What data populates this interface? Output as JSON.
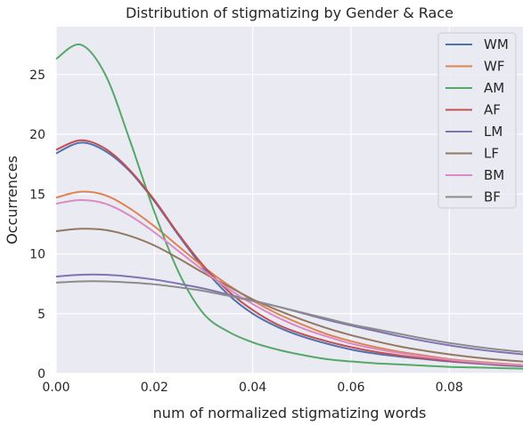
{
  "chart_data": {
    "type": "line",
    "title": "Distribution of stigmatizing by Gender & Race",
    "xlabel": "num of normalized stigmatizing words",
    "ylabel": "Occurrences",
    "xlim": [
      0.0,
      0.095
    ],
    "ylim": [
      0,
      29
    ],
    "xticks": [
      0.0,
      0.02,
      0.04,
      0.06,
      0.08
    ],
    "xtick_labels": [
      "0.00",
      "0.02",
      "0.04",
      "0.06",
      "0.08"
    ],
    "yticks": [
      0,
      5,
      10,
      15,
      20,
      25
    ],
    "ytick_labels": [
      "0",
      "5",
      "10",
      "15",
      "20",
      "25"
    ],
    "grid": true,
    "legend_position": "top-right",
    "x": [
      0.0,
      0.005,
      0.01,
      0.015,
      0.02,
      0.025,
      0.03,
      0.035,
      0.04,
      0.045,
      0.05,
      0.055,
      0.06,
      0.065,
      0.07,
      0.075,
      0.08,
      0.085,
      0.09,
      0.095
    ],
    "series": [
      {
        "name": "WM",
        "color": "#4c72b0",
        "values": [
          18.4,
          19.3,
          18.6,
          16.9,
          14.4,
          11.5,
          8.8,
          6.6,
          5.0,
          3.9,
          3.1,
          2.5,
          2.0,
          1.65,
          1.4,
          1.2,
          1.0,
          0.85,
          0.7,
          0.6
        ]
      },
      {
        "name": "WF",
        "color": "#dd8452",
        "values": [
          14.7,
          15.2,
          14.9,
          13.8,
          12.3,
          10.6,
          8.9,
          7.4,
          6.1,
          5.0,
          4.1,
          3.3,
          2.7,
          2.2,
          1.8,
          1.5,
          1.2,
          1.0,
          0.85,
          0.7
        ]
      },
      {
        "name": "AM",
        "color": "#55a868",
        "values": [
          26.3,
          27.5,
          25.0,
          19.5,
          13.5,
          8.4,
          5.0,
          3.5,
          2.6,
          2.0,
          1.55,
          1.2,
          1.0,
          0.85,
          0.75,
          0.65,
          0.55,
          0.5,
          0.45,
          0.4
        ]
      },
      {
        "name": "AF",
        "color": "#c44e52",
        "values": [
          18.7,
          19.5,
          18.8,
          17.0,
          14.5,
          11.6,
          9.0,
          6.9,
          5.3,
          4.1,
          3.3,
          2.7,
          2.2,
          1.8,
          1.5,
          1.25,
          1.05,
          0.9,
          0.75,
          0.65
        ]
      },
      {
        "name": "LM",
        "color": "#8172b3",
        "values": [
          8.1,
          8.25,
          8.25,
          8.1,
          7.85,
          7.5,
          7.1,
          6.6,
          6.1,
          5.6,
          5.05,
          4.5,
          4.0,
          3.55,
          3.1,
          2.7,
          2.35,
          2.05,
          1.8,
          1.6
        ]
      },
      {
        "name": "LF",
        "color": "#937860",
        "values": [
          11.9,
          12.1,
          12.0,
          11.5,
          10.7,
          9.6,
          8.4,
          7.3,
          6.2,
          5.3,
          4.5,
          3.8,
          3.2,
          2.7,
          2.25,
          1.9,
          1.6,
          1.35,
          1.15,
          1.0
        ]
      },
      {
        "name": "BM",
        "color": "#da8bc3",
        "values": [
          14.2,
          14.5,
          14.2,
          13.2,
          11.8,
          10.2,
          8.6,
          7.1,
          5.8,
          4.7,
          3.8,
          3.1,
          2.5,
          2.05,
          1.7,
          1.4,
          1.15,
          0.95,
          0.8,
          0.7
        ]
      },
      {
        "name": "BF",
        "color": "#8c8c8c",
        "values": [
          7.6,
          7.7,
          7.7,
          7.6,
          7.45,
          7.2,
          6.9,
          6.5,
          6.05,
          5.6,
          5.1,
          4.6,
          4.1,
          3.7,
          3.3,
          2.9,
          2.55,
          2.25,
          2.0,
          1.8
        ]
      }
    ]
  }
}
